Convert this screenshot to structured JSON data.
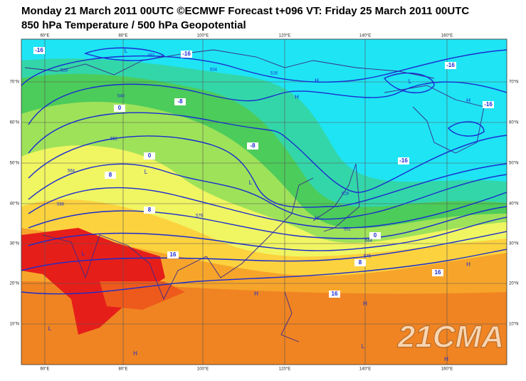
{
  "header": {
    "title": "Monday 21 March 2011 00UTC ©ECMWF Forecast t+096 VT: Friday 25 March 2011 00UTC",
    "subtitle": "850 hPa Temperature / 500 hPa Geopotential"
  },
  "map": {
    "lon_labels": [
      "60°E",
      "80°E",
      "100°E",
      "120°E",
      "140°E",
      "160°E"
    ],
    "lat_labels": [
      "70°N",
      "60°N",
      "50°N",
      "40°N",
      "30°N",
      "20°N",
      "10°N"
    ],
    "temperature_labels": [
      "-16",
      "-16",
      "-16",
      "-16",
      "-16",
      "-8",
      "-8",
      "0",
      "0",
      "0",
      "8",
      "8",
      "8",
      "16",
      "16",
      "16"
    ],
    "geopotential_labels": [
      "492",
      "504",
      "516",
      "528",
      "540",
      "552",
      "564",
      "576",
      "588",
      "528",
      "552",
      "564",
      "576"
    ],
    "centers": [
      "L",
      "L",
      "H",
      "H",
      "L",
      "L",
      "L",
      "H",
      "H",
      "L",
      "H",
      "L",
      "H",
      "H",
      "H",
      "H"
    ],
    "watermark": "21CMA"
  }
}
